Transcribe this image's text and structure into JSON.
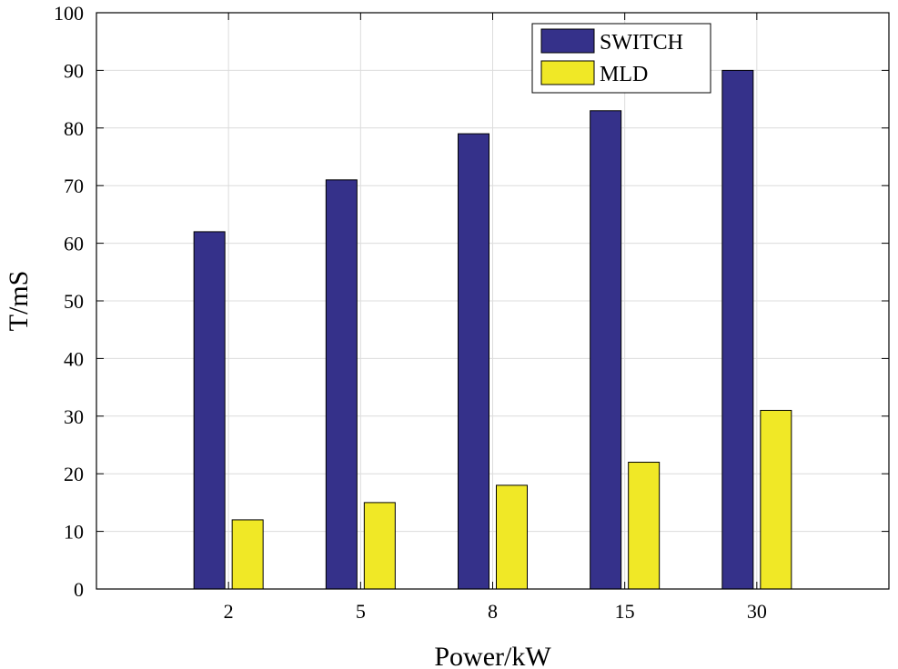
{
  "chart_data": {
    "type": "bar",
    "title": "",
    "xlabel": "Power/kW",
    "ylabel": "T/mS",
    "categories": [
      "2",
      "5",
      "8",
      "15",
      "30"
    ],
    "series": [
      {
        "name": "SWITCH",
        "values": [
          62,
          71,
          79,
          83,
          90
        ],
        "color": "#35318a"
      },
      {
        "name": "MLD",
        "values": [
          12,
          15,
          18,
          22,
          31
        ],
        "color": "#f0e826"
      }
    ],
    "ylim": [
      0,
      100
    ],
    "yticks": [
      0,
      10,
      20,
      30,
      40,
      50,
      60,
      70,
      80,
      90,
      100
    ],
    "grid": true,
    "legend_position": "top-right"
  }
}
